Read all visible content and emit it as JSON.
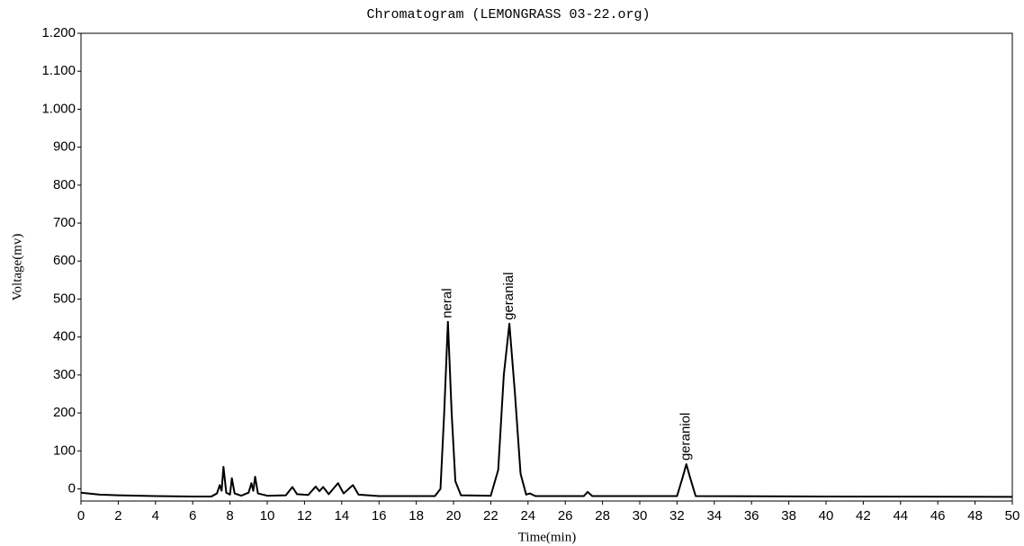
{
  "chart_data": {
    "type": "line",
    "title": "Chromatogram (LEMONGRASS 03-22.org)",
    "x_label": "Time(min)",
    "y_label": "Voltage(mv)",
    "color": "#000000",
    "x": [
      0,
      1,
      2,
      4,
      6,
      7,
      7.3,
      7.45,
      7.55,
      7.65,
      7.8,
      8.0,
      8.1,
      8.25,
      8.6,
      9.0,
      9.15,
      9.25,
      9.35,
      9.5,
      10,
      11,
      11.35,
      11.6,
      12.2,
      12.6,
      12.8,
      13.0,
      13.3,
      13.8,
      14.1,
      14.6,
      14.9,
      16,
      19,
      19.3,
      19.5,
      19.7,
      19.9,
      20.1,
      20.4,
      22,
      22.4,
      22.7,
      23.0,
      23.3,
      23.6,
      23.9,
      24.1,
      24.4,
      27,
      27.2,
      27.45,
      32,
      32.3,
      32.5,
      32.7,
      33,
      40,
      50
    ],
    "values": [
      -10,
      -15,
      -17,
      -19,
      -20,
      -20,
      -12,
      10,
      -5,
      58,
      -10,
      -15,
      28,
      -12,
      -18,
      -10,
      15,
      -5,
      32,
      -12,
      -18,
      -17,
      5,
      -14,
      -16,
      6,
      -6,
      5,
      -14,
      15,
      -12,
      10,
      -15,
      -19,
      -19,
      0,
      200,
      440,
      200,
      20,
      -17,
      -18,
      50,
      300,
      435,
      250,
      40,
      -15,
      -12,
      -19,
      -19,
      -8,
      -19,
      -19,
      30,
      65,
      30,
      -19,
      -20,
      -21
    ],
    "annotations": [
      {
        "text": "neral",
        "x": 19.7,
        "y": 440
      },
      {
        "text": "geranial",
        "x": 23.0,
        "y": 435
      },
      {
        "text": "geraniol",
        "x": 32.5,
        "y": 65
      }
    ],
    "xlim": [
      0,
      50
    ],
    "xticks": [
      0,
      2,
      4,
      6,
      8,
      10,
      12,
      14,
      16,
      18,
      20,
      22,
      24,
      26,
      28,
      30,
      32,
      34,
      36,
      38,
      40,
      42,
      44,
      46,
      48,
      50
    ],
    "ylim": [
      -32,
      1200
    ],
    "yticks": [
      0,
      100,
      200,
      300,
      400,
      500,
      600,
      700,
      800,
      900,
      {
        "value": 1000,
        "label": "1.000"
      },
      {
        "value": 1100,
        "label": "1.100"
      },
      {
        "value": 1200,
        "label": "1.200"
      }
    ],
    "grid": false
  }
}
